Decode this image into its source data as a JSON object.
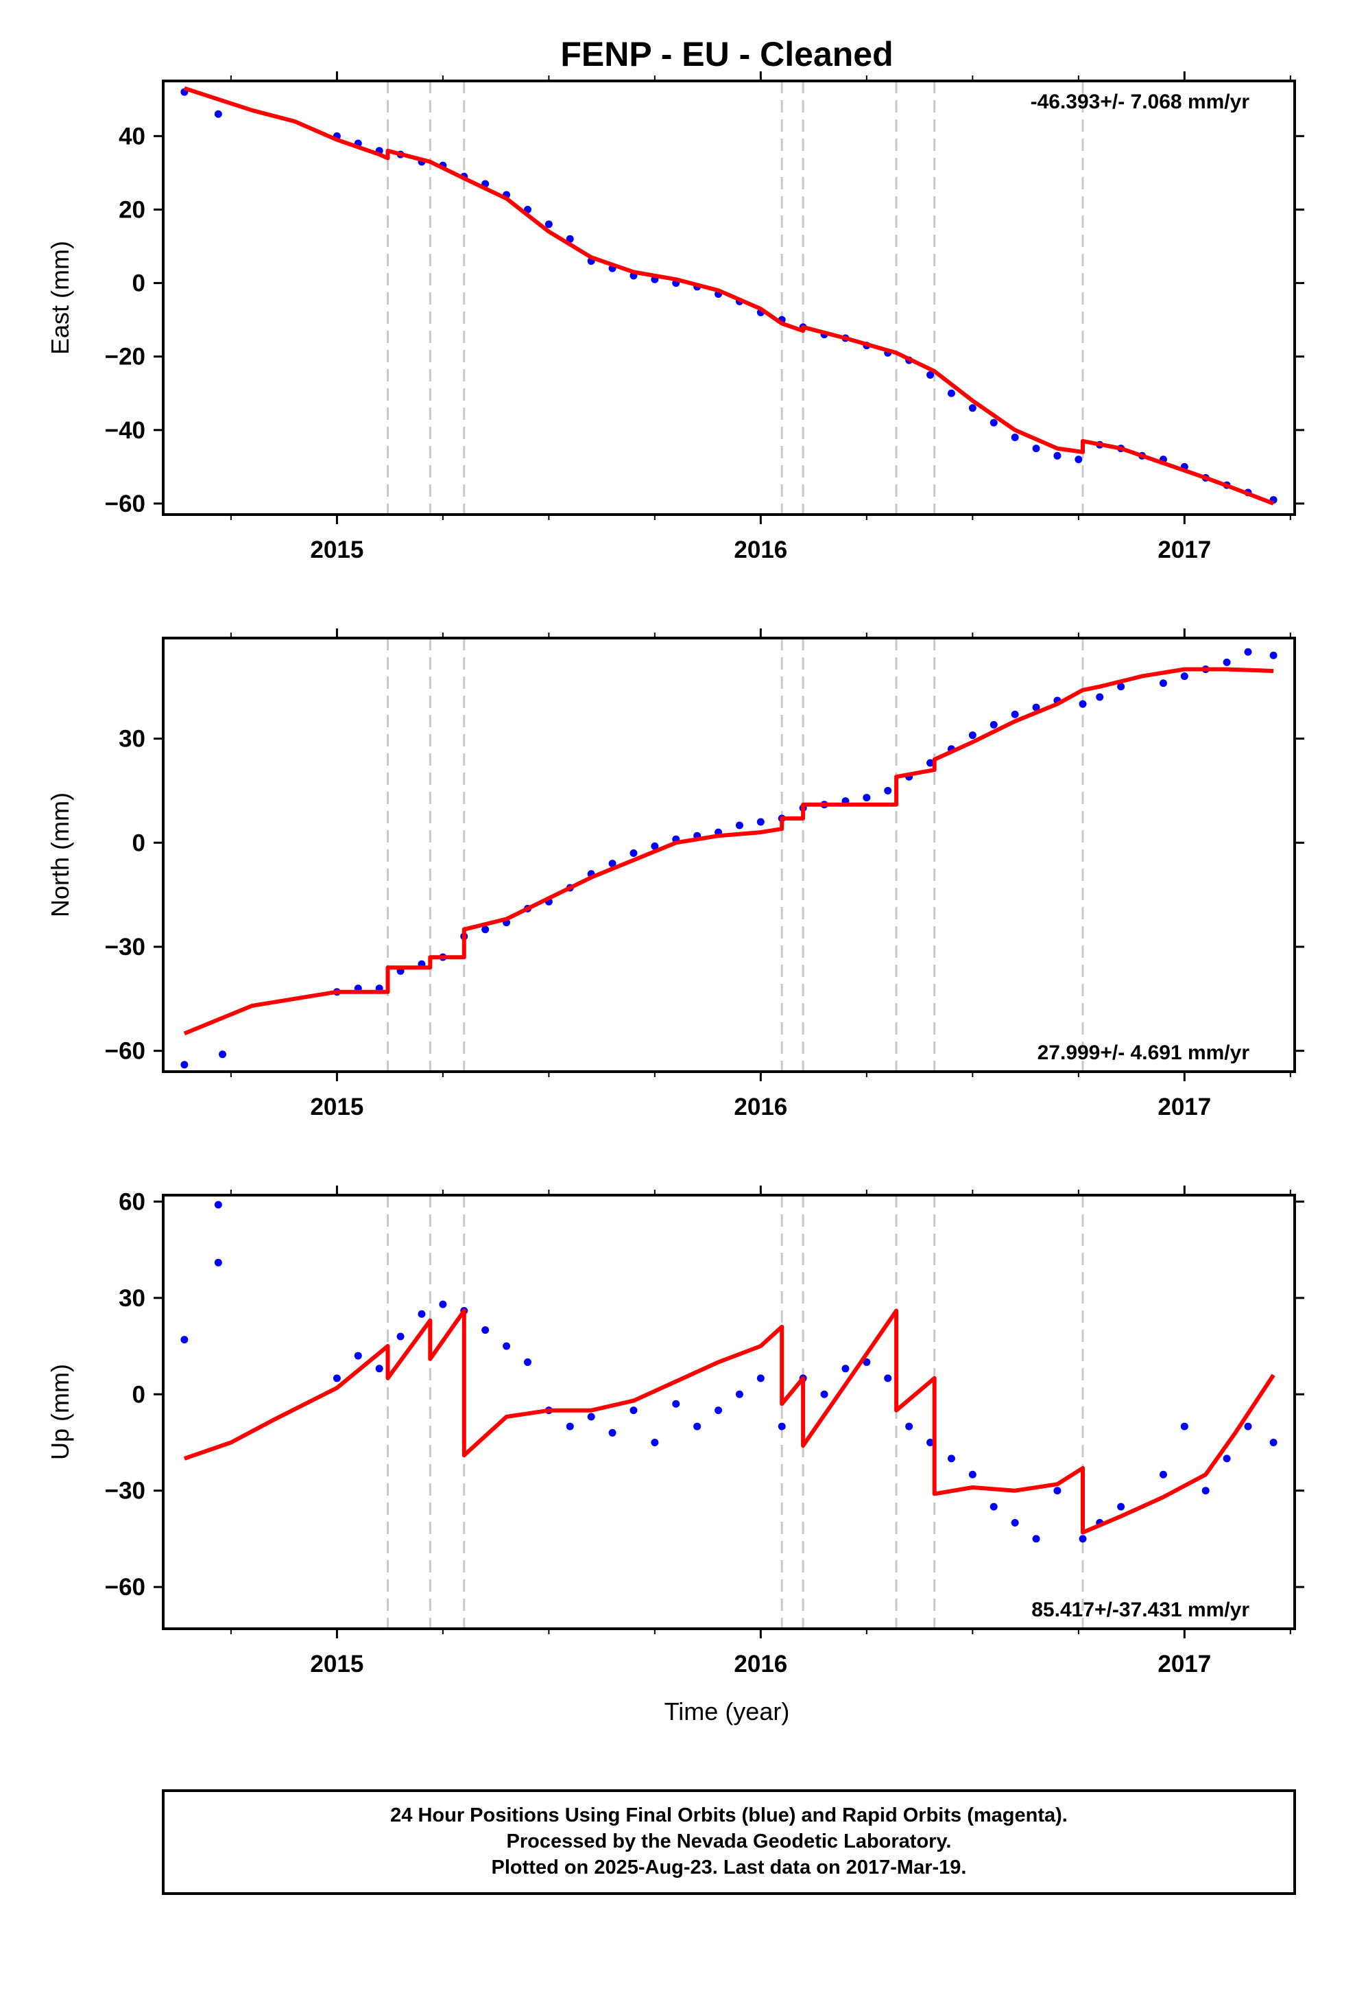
{
  "title": "FENP  - EU - Cleaned",
  "colors": {
    "final_points": "#0000ff",
    "model_line": "#ff0000",
    "event_lines": "#c8c8c8",
    "frame": "#000000"
  },
  "x_axis": {
    "label": "Time (year)",
    "range": [
      2014.59,
      2017.26
    ],
    "ticks": [
      {
        "value": 2015,
        "label": "2015"
      },
      {
        "value": 2016,
        "label": "2016"
      },
      {
        "value": 2017,
        "label": "2017"
      }
    ]
  },
  "event_years": [
    2015.12,
    2015.22,
    2015.3,
    2016.05,
    2016.1,
    2016.32,
    2016.41,
    2016.76
  ],
  "footer": {
    "line1": "24 Hour Positions Using Final Orbits (blue) and Rapid Orbits (magenta).",
    "line2": "Processed by the Nevada Geodetic Laboratory.",
    "line3": "Plotted on 2025-Aug-23. Last data on 2017-Mar-19."
  },
  "chart_data": [
    {
      "type": "scatter",
      "ylabel": "East (mm)",
      "ylim": [
        -63,
        55
      ],
      "yticks": [
        {
          "value": 40,
          "label": "40"
        },
        {
          "value": 20,
          "label": "20"
        },
        {
          "value": 0,
          "label": "0"
        },
        {
          "value": -20,
          "label": "−20"
        },
        {
          "value": -40,
          "label": "−40"
        },
        {
          "value": -60,
          "label": "−60"
        }
      ],
      "rate_text": "-46.393+/- 7.068 mm/yr",
      "rate_position": "top-right",
      "series": [
        {
          "x": [
            2014.64,
            2014.72,
            2015.0,
            2015.05,
            2015.1,
            2015.15,
            2015.2,
            2015.25,
            2015.3,
            2015.35,
            2015.4,
            2015.45,
            2015.5,
            2015.55,
            2015.6,
            2015.65,
            2015.7,
            2015.75,
            2015.8,
            2015.85,
            2015.9,
            2015.95,
            2016.0,
            2016.05,
            2016.1,
            2016.15,
            2016.2,
            2016.25,
            2016.3,
            2016.35,
            2016.4,
            2016.45,
            2016.5,
            2016.55,
            2016.6,
            2016.65,
            2016.7,
            2016.75,
            2016.8,
            2016.85,
            2016.9,
            2016.95,
            2017.0,
            2017.05,
            2017.1,
            2017.15,
            2017.21
          ],
          "y": [
            52,
            46,
            40,
            38,
            36,
            35,
            33,
            32,
            29,
            27,
            24,
            20,
            16,
            12,
            6,
            4,
            2,
            1,
            0,
            -1,
            -3,
            -5,
            -8,
            -10,
            -12,
            -14,
            -15,
            -17,
            -19,
            -21,
            -25,
            -30,
            -34,
            -38,
            -42,
            -45,
            -47,
            -48,
            -44,
            -45,
            -47,
            -48,
            -50,
            -53,
            -55,
            -57,
            -59
          ]
        }
      ],
      "model": {
        "x": [
          2014.64,
          2014.8,
          2014.9,
          2015.0,
          2015.1,
          2015.12,
          2015.12,
          2015.22,
          2015.22,
          2015.3,
          2015.3,
          2015.4,
          2015.5,
          2015.6,
          2015.7,
          2015.8,
          2015.9,
          2016.0,
          2016.05,
          2016.05,
          2016.1,
          2016.1,
          2016.2,
          2016.32,
          2016.32,
          2016.41,
          2016.41,
          2016.5,
          2016.6,
          2016.7,
          2016.76,
          2016.76,
          2016.85,
          2016.95,
          2017.05,
          2017.12,
          2017.21
        ],
        "y": [
          53,
          47,
          44,
          39,
          35,
          34,
          36,
          33,
          33,
          28.5,
          28.5,
          23,
          14,
          7,
          3,
          1,
          -2,
          -7,
          -11,
          -11,
          -13,
          -12,
          -15,
          -19,
          -19,
          -24,
          -24,
          -32,
          -40,
          -45,
          -46,
          -43,
          -45,
          -49,
          -53,
          -56,
          -60
        ]
      }
    },
    {
      "type": "scatter",
      "ylabel": "North (mm)",
      "ylim": [
        -66,
        59
      ],
      "yticks": [
        {
          "value": 30,
          "label": "30"
        },
        {
          "value": 0,
          "label": "0"
        },
        {
          "value": -30,
          "label": "−30"
        },
        {
          "value": -60,
          "label": "−60"
        }
      ],
      "rate_text": "27.999+/- 4.691 mm/yr",
      "rate_position": "bottom-right",
      "series": [
        {
          "x": [
            2014.64,
            2014.73,
            2015.0,
            2015.05,
            2015.1,
            2015.15,
            2015.2,
            2015.25,
            2015.3,
            2015.35,
            2015.4,
            2015.45,
            2015.5,
            2015.55,
            2015.6,
            2015.65,
            2015.7,
            2015.75,
            2015.8,
            2015.85,
            2015.9,
            2015.95,
            2016.0,
            2016.05,
            2016.1,
            2016.15,
            2016.2,
            2016.25,
            2016.3,
            2016.35,
            2016.4,
            2016.45,
            2016.5,
            2016.55,
            2016.6,
            2016.65,
            2016.7,
            2016.76,
            2016.8,
            2016.85,
            2016.95,
            2017.0,
            2017.05,
            2017.1,
            2017.15,
            2017.21
          ],
          "y": [
            -64,
            -61,
            -43,
            -42,
            -42,
            -37,
            -35,
            -33,
            -27,
            -25,
            -23,
            -19,
            -17,
            -13,
            -9,
            -6,
            -3,
            -1,
            1,
            2,
            3,
            5,
            6,
            7,
            10,
            11,
            12,
            13,
            15,
            19,
            23,
            27,
            31,
            34,
            37,
            39,
            41,
            40,
            42,
            45,
            46,
            48,
            50,
            52,
            55,
            54
          ]
        }
      ],
      "model": {
        "x": [
          2014.64,
          2014.8,
          2015.0,
          2015.12,
          2015.12,
          2015.22,
          2015.22,
          2015.3,
          2015.3,
          2015.4,
          2015.5,
          2015.6,
          2015.7,
          2015.8,
          2015.9,
          2016.0,
          2016.05,
          2016.05,
          2016.1,
          2016.1,
          2016.2,
          2016.32,
          2016.32,
          2016.41,
          2016.41,
          2016.5,
          2016.6,
          2016.7,
          2016.76,
          2016.8,
          2016.9,
          2017.0,
          2017.1,
          2017.21
        ],
        "y": [
          -55,
          -47,
          -43,
          -43,
          -36,
          -36,
          -33,
          -33,
          -25,
          -22,
          -16,
          -10,
          -5,
          0,
          2,
          3,
          4,
          7,
          7,
          11,
          11,
          11,
          19,
          21,
          24,
          29,
          35,
          40,
          44,
          45,
          48,
          50,
          50,
          49.5
        ]
      }
    },
    {
      "type": "scatter",
      "ylabel": "Up (mm)",
      "ylim": [
        -73,
        62
      ],
      "yticks": [
        {
          "value": 60,
          "label": "60"
        },
        {
          "value": 30,
          "label": "30"
        },
        {
          "value": 0,
          "label": "0"
        },
        {
          "value": -30,
          "label": "−30"
        },
        {
          "value": -60,
          "label": "−60"
        }
      ],
      "rate_text": "85.417+/-37.431 mm/yr",
      "rate_position": "bottom-right",
      "series": [
        {
          "x": [
            2014.64,
            2014.72,
            2014.72,
            2015.0,
            2015.05,
            2015.1,
            2015.15,
            2015.2,
            2015.25,
            2015.3,
            2015.35,
            2015.4,
            2015.45,
            2015.5,
            2015.55,
            2015.6,
            2015.65,
            2015.7,
            2015.75,
            2015.8,
            2015.85,
            2015.9,
            2015.95,
            2016.0,
            2016.05,
            2016.1,
            2016.15,
            2016.2,
            2016.25,
            2016.3,
            2016.35,
            2016.4,
            2016.45,
            2016.5,
            2016.55,
            2016.6,
            2016.65,
            2016.7,
            2016.76,
            2016.8,
            2016.85,
            2016.95,
            2017.0,
            2017.05,
            2017.1,
            2017.15,
            2017.21
          ],
          "y": [
            17,
            59,
            41,
            5,
            12,
            8,
            18,
            25,
            28,
            26,
            20,
            15,
            10,
            -5,
            -10,
            -7,
            -12,
            -5,
            -15,
            -3,
            -10,
            -5,
            0,
            5,
            -10,
            5,
            0,
            8,
            10,
            5,
            -10,
            -15,
            -20,
            -25,
            -35,
            -40,
            -45,
            -30,
            -45,
            -40,
            -35,
            -25,
            -10,
            -30,
            -20,
            -10,
            -15
          ]
        }
      ],
      "model": {
        "x": [
          2014.64,
          2014.75,
          2014.85,
          2015.0,
          2015.12,
          2015.12,
          2015.22,
          2015.22,
          2015.3,
          2015.3,
          2015.4,
          2015.5,
          2015.6,
          2015.7,
          2015.8,
          2015.9,
          2016.0,
          2016.05,
          2016.05,
          2016.1,
          2016.1,
          2016.2,
          2016.32,
          2016.32,
          2016.41,
          2016.41,
          2016.5,
          2016.6,
          2016.7,
          2016.76,
          2016.76,
          2016.85,
          2016.95,
          2017.05,
          2017.12,
          2017.21
        ],
        "y": [
          -20,
          -15,
          -8,
          2,
          15,
          5,
          23,
          11,
          26,
          -19,
          -7,
          -5,
          -5,
          -2,
          4,
          10,
          15,
          21,
          -3,
          5,
          -16,
          3,
          26,
          -5,
          5,
          -31,
          -29,
          -30,
          -28,
          -23,
          -43,
          -38,
          -32,
          -25,
          -12,
          6
        ]
      }
    }
  ]
}
